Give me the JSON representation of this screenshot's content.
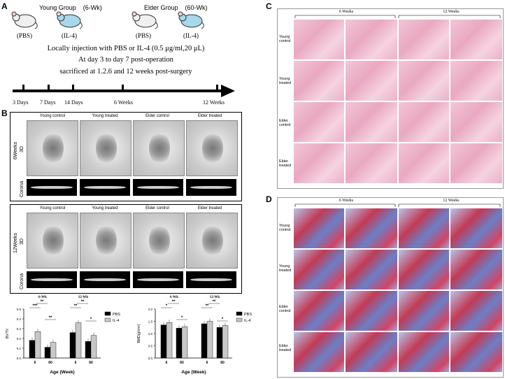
{
  "panels": {
    "A": "A",
    "B": "B",
    "C": "C",
    "D": "D"
  },
  "panel_a": {
    "young_group": "Young Group",
    "young_age": "(6-Wk)",
    "elder_group": "Elder Group",
    "elder_age": "(60-Wk)",
    "pbs": "(PBS)",
    "il4": "(IL-4)",
    "line1": "Locally  injection with PBS or IL-4 (0.5 μg/ml,20 μL)",
    "line2": "At day 3 to day 7 post-operation",
    "line3": "sacrificed at 1.2.6 and 12 weeks post-surgery",
    "timeline": [
      "3 Days",
      "7 Days",
      "14 Days",
      "6 Weeks",
      "12 Weeks"
    ]
  },
  "panel_b": {
    "columns": [
      "Young control",
      "Young treated",
      "Elder control",
      "Elder treated"
    ],
    "week6": "6Weeks",
    "week12": "12Weeks",
    "view_3d": "3D",
    "view_corona": "Corona"
  },
  "chart_data": [
    {
      "type": "bar",
      "ylabel": "BV/TV",
      "xlabel": "Age (Week)",
      "groups": [
        "6-Wk",
        "12-Wk"
      ],
      "categories": [
        "6",
        "60",
        "6",
        "60"
      ],
      "ylim": [
        0,
        0.5
      ],
      "yticks": [
        "0.0",
        "0.1",
        "0.2",
        "0.3",
        "0.4",
        "0.5"
      ],
      "series": [
        {
          "name": "PBS",
          "color": "#000000",
          "values": [
            0.18,
            0.11,
            0.26,
            0.17
          ]
        },
        {
          "name": "IL-4",
          "color": "#c8c8c8",
          "values": [
            0.27,
            0.16,
            0.36,
            0.23
          ]
        }
      ],
      "significance": [
        "***",
        "**",
        "**",
        "**",
        "**",
        "*"
      ]
    },
    {
      "type": "bar",
      "ylabel": "BMD(g/cm³)",
      "xlabel": "Age (Week)",
      "groups": [
        "6-Wk",
        "12-Wk"
      ],
      "categories": [
        "6",
        "60",
        "6",
        "60"
      ],
      "ylim": [
        0,
        2.0
      ],
      "yticks": [
        "0.0",
        "0.5",
        "1.0",
        "1.5",
        "2.0"
      ],
      "series": [
        {
          "name": "PBS",
          "color": "#000000",
          "values": [
            1.35,
            1.22,
            1.4,
            1.25
          ]
        },
        {
          "name": "IL-4",
          "color": "#c8c8c8",
          "values": [
            1.45,
            1.28,
            1.5,
            1.33
          ]
        }
      ],
      "significance": [
        "*",
        "**",
        "*",
        "**",
        "**",
        "*"
      ]
    }
  ],
  "panel_c": {
    "weeks": [
      "6 Weeks",
      "12 Weeks"
    ],
    "rows": [
      "Young control",
      "Young treated",
      "Elder control",
      "Elder treated"
    ]
  },
  "panel_d": {
    "weeks": [
      "6 Weeks",
      "12 Weeks"
    ],
    "rows": [
      "Young control",
      "Young treated",
      "Elder control",
      "Elder treated"
    ]
  }
}
